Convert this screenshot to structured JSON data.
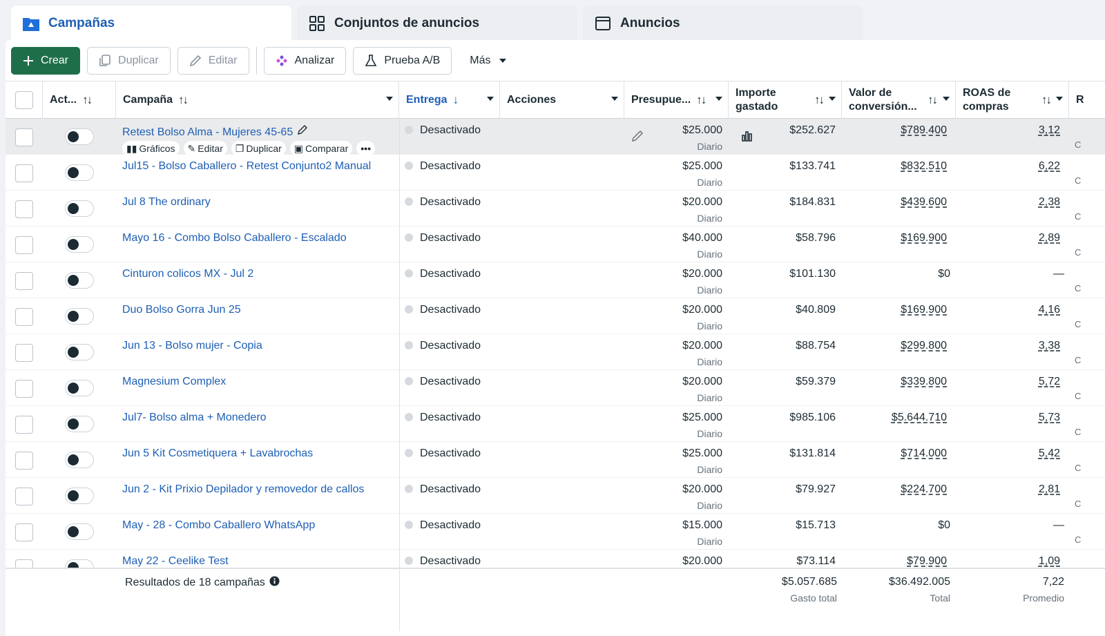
{
  "tabs": [
    {
      "label": "Campañas",
      "icon": "campaign-folder-icon"
    },
    {
      "label": "Conjuntos de anuncios",
      "icon": "grid-icon"
    },
    {
      "label": "Anuncios",
      "icon": "ad-window-icon"
    }
  ],
  "toolbar": {
    "create": "Crear",
    "duplicate": "Duplicar",
    "edit": "Editar",
    "analyze": "Analizar",
    "ab_test": "Prueba A/B",
    "more": "Más"
  },
  "columns": {
    "status": "Act...",
    "campaign": "Campaña",
    "delivery": "Entrega",
    "actions": "Acciones",
    "budget": "Presupue...",
    "spent_l1": "Importe",
    "spent_l2": "gastado",
    "conv_l1": "Valor de",
    "conv_l2": "conversión...",
    "roas_l1": "ROAS de",
    "roas_l2": "compras",
    "clipped": "R"
  },
  "row_actions": {
    "charts": "Gráficos",
    "edit": "Editar",
    "duplicate": "Duplicar",
    "compare": "Comparar",
    "more": "•••"
  },
  "rows": [
    {
      "name": "Retest Bolso Alma - Mujeres 45-65",
      "delivery": "Desactivado",
      "budget": "$25.000",
      "budget_period": "Diario",
      "spent": "$252.627",
      "conv_value": "$789.400",
      "roas": "3,12",
      "clip": "C"
    },
    {
      "name": "Jul15 - Bolso Caballero - Retest Conjunto2 Manual",
      "delivery": "Desactivado",
      "budget": "$25.000",
      "budget_period": "Diario",
      "spent": "$133.741",
      "conv_value": "$832.510",
      "roas": "6,22",
      "clip": "C"
    },
    {
      "name": "Jul 8 The ordinary",
      "delivery": "Desactivado",
      "budget": "$20.000",
      "budget_period": "Diario",
      "spent": "$184.831",
      "conv_value": "$439.600",
      "roas": "2,38",
      "clip": "C"
    },
    {
      "name": "Mayo 16 - Combo Bolso Caballero - Escalado",
      "delivery": "Desactivado",
      "budget": "$40.000",
      "budget_period": "Diario",
      "spent": "$58.796",
      "conv_value": "$169.900",
      "roas": "2,89",
      "clip": "C"
    },
    {
      "name": "Cinturon colicos MX - Jul 2",
      "delivery": "Desactivado",
      "budget": "$20.000",
      "budget_period": "Diario",
      "spent": "$101.130",
      "conv_value": "$0",
      "roas": "—",
      "clip": "C"
    },
    {
      "name": "Duo Bolso Gorra Jun 25",
      "delivery": "Desactivado",
      "budget": "$20.000",
      "budget_period": "Diario",
      "spent": "$40.809",
      "conv_value": "$169.900",
      "roas": "4,16",
      "clip": "C"
    },
    {
      "name": "Jun 13 - Bolso mujer - Copia",
      "delivery": "Desactivado",
      "budget": "$20.000",
      "budget_period": "Diario",
      "spent": "$88.754",
      "conv_value": "$299.800",
      "roas": "3,38",
      "clip": "C"
    },
    {
      "name": "Magnesium Complex",
      "delivery": "Desactivado",
      "budget": "$20.000",
      "budget_period": "Diario",
      "spent": "$59.379",
      "conv_value": "$339.800",
      "roas": "5,72",
      "clip": "C"
    },
    {
      "name": "Jul7- Bolso alma + Monedero",
      "delivery": "Desactivado",
      "budget": "$25.000",
      "budget_period": "Diario",
      "spent": "$985.106",
      "conv_value": "$5.644.710",
      "roas": "5,73",
      "clip": "C"
    },
    {
      "name": "Jun 5 Kit Cosmetiquera + Lavabrochas",
      "delivery": "Desactivado",
      "budget": "$25.000",
      "budget_period": "Diario",
      "spent": "$131.814",
      "conv_value": "$714.000",
      "roas": "5,42",
      "clip": "C"
    },
    {
      "name": "Jun 2 - Kit Prixio Depilador y removedor de callos",
      "delivery": "Desactivado",
      "budget": "$20.000",
      "budget_period": "Diario",
      "spent": "$79.927",
      "conv_value": "$224.700",
      "roas": "2,81",
      "clip": "C"
    },
    {
      "name": "May - 28 - Combo Caballero WhatsApp",
      "delivery": "Desactivado",
      "budget": "$15.000",
      "budget_period": "Diario",
      "spent": "$15.713",
      "conv_value": "$0",
      "roas": "—",
      "clip": "C"
    },
    {
      "name": "May 22 - Ceelike Test",
      "delivery": "Desactivado",
      "budget": "$20.000",
      "budget_period": "",
      "spent": "$73.114",
      "conv_value": "$79.900",
      "roas": "1,09",
      "clip": ""
    }
  ],
  "footer": {
    "results": "Resultados de 18 campañas",
    "total_spent": "$5.057.685",
    "total_spent_label": "Gasto total",
    "total_conv": "$36.492.005",
    "total_conv_label": "Total",
    "avg_roas": "7,22",
    "avg_roas_label": "Promedio"
  }
}
